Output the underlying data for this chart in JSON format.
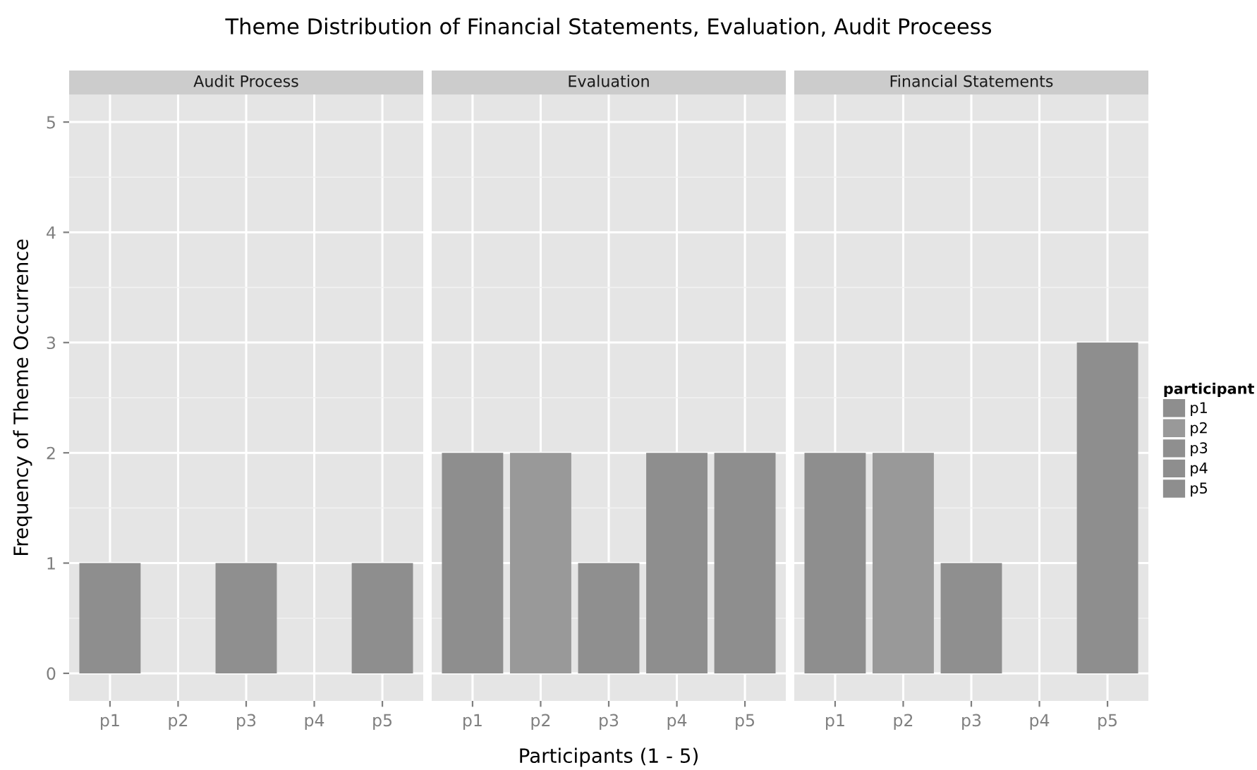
{
  "chart_data": [
    {
      "type": "bar",
      "title": "Audit Process",
      "ylabel": "Frequency of Theme Occurrence",
      "annotations": [
        "Theme Distribution of Financial Statements, Evaluation, Audit Proceess"
      ],
      "categories": [
        "p1",
        "p2",
        "p3",
        "p4",
        "p5"
      ],
      "ylim": [
        -0.25,
        5.25
      ],
      "yticks": [
        0,
        1,
        2,
        3,
        4,
        5
      ],
      "grid": true,
      "series": [
        {
          "color": "#8e8e8e",
          "values": [
            1,
            null,
            null,
            null,
            null
          ]
        },
        {
          "color": "#8f8f8f",
          "values": [
            null,
            null,
            1,
            null,
            null
          ]
        },
        {
          "color": "#8e8e8e",
          "values": [
            null,
            null,
            null,
            null,
            1
          ]
        }
      ]
    },
    {
      "type": "bar",
      "title": "Evaluation",
      "xlabel": "Participants (1 - 5)",
      "categories": [
        "p1",
        "p2",
        "p3",
        "p4",
        "p5"
      ],
      "ylim": [
        -0.25,
        5.25
      ],
      "yticks": [
        0,
        1,
        2,
        3,
        4,
        5
      ],
      "grid": true,
      "tick_labels": "x",
      "series": [
        {
          "color": "#8e8e8e",
          "values": [
            2,
            null,
            null,
            null,
            null
          ]
        },
        {
          "color": "#999999",
          "values": [
            null,
            2,
            null,
            null,
            null
          ]
        },
        {
          "color": "#8f8f8f",
          "values": [
            null,
            null,
            1,
            null,
            null
          ]
        },
        {
          "color": "#8e8e8e",
          "values": [
            null,
            null,
            null,
            2,
            null
          ]
        },
        {
          "color": "#8e8e8e",
          "values": [
            null,
            null,
            null,
            null,
            2
          ]
        }
      ]
    },
    {
      "type": "bar",
      "title": "Financial Statements",
      "categories": [
        "p1",
        "p2",
        "p3",
        "p4",
        "p5"
      ],
      "ylim": [
        -0.25,
        5.25
      ],
      "yticks": [
        0,
        1,
        2,
        3,
        4,
        5
      ],
      "grid": true,
      "tick_labels": "x",
      "legend": "right",
      "legend_title": "participant",
      "series": [
        {
          "name": "p1",
          "color": "#8e8e8e",
          "values": [
            2,
            null,
            null,
            null,
            null
          ]
        },
        {
          "name": "p2",
          "color": "#999999",
          "values": [
            null,
            2,
            null,
            null,
            null
          ]
        },
        {
          "name": "p3",
          "color": "#8f8f8f",
          "values": [
            null,
            null,
            1,
            null,
            null
          ]
        },
        {
          "name": "p4",
          "color": "#8e8e8e",
          "values": [
            null,
            null,
            null,
            null,
            null
          ]
        },
        {
          "name": "p5",
          "color": "#8e8e8e",
          "values": [
            null,
            null,
            null,
            null,
            3
          ]
        }
      ]
    }
  ]
}
